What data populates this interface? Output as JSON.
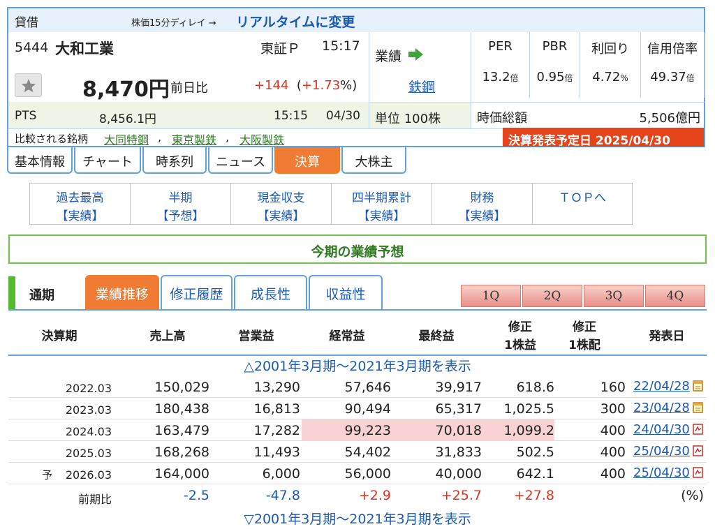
{
  "header": {
    "kashaku": "貸借",
    "delay_text": "株価15分ディレイ →",
    "realtime_link": "リアルタイムに変更",
    "code": "5444",
    "name": "大和工業",
    "market": "東証Ｐ",
    "time": "15:17",
    "price": "8,470円",
    "prev_label": "前日比",
    "change": "+144",
    "change_paren_open": "(",
    "change_pct": "+1.73",
    "change_paren_close": "%)",
    "pts_label": "PTS",
    "pts_price": "8,456.1円",
    "pts_time": "15:15",
    "pts_date": "04/30",
    "gyoseki_label": "業績",
    "industry": "鉄鋼",
    "unit": "単位 100株",
    "indicators": [
      {
        "label": "PER",
        "value": "13.2",
        "unit": "倍"
      },
      {
        "label": "PBR",
        "value": "0.95",
        "unit": "倍"
      },
      {
        "label": "利回り",
        "value": "4.72",
        "unit": "%"
      },
      {
        "label": "信用倍率",
        "value": "49.37",
        "unit": "倍"
      }
    ],
    "market_cap_label": "時価総額",
    "market_cap": "5,506億円",
    "compare_label": "比較される銘柄",
    "compare": [
      "大同特鋼",
      "東京製鉄",
      "大阪製鉄"
    ],
    "compare_sep": ",",
    "earnings_announce": "決算発表予定日  2025/04/30"
  },
  "tabs": [
    "基本情報",
    "チャート",
    "時系列",
    "ニュース",
    "決算",
    "大株主"
  ],
  "active_tab": "決算",
  "submenu": [
    {
      "top": "過去最高",
      "bottom": "【実績】"
    },
    {
      "top": "半期",
      "bottom": "【予想】"
    },
    {
      "top": "現金収支",
      "bottom": "【実績】"
    },
    {
      "top": "四半期累計",
      "bottom": "【実績】"
    },
    {
      "top": "財務",
      "bottom": "【実績】"
    },
    {
      "top": "ＴＯＰへ",
      "bottom": ""
    }
  ],
  "banner": "今期の業績予想",
  "period_label": "通期",
  "lower_tabs": [
    "業績推移",
    "修正履歴",
    "成長性",
    "収益性"
  ],
  "quarter_buttons": [
    "1Q",
    "2Q",
    "3Q",
    "4Q"
  ],
  "table": {
    "headers": {
      "period": "決算期",
      "sales": "売上高",
      "op": "営業益",
      "ordinary": "経常益",
      "net": "最終益",
      "eps_l1": "修正",
      "eps_l2": "1株益",
      "div_l1": "修正",
      "div_l2": "1株配",
      "date": "発表日"
    },
    "toggle_top": "△2001年3月期～2021年3月期を表示",
    "toggle_bottom": "▽2001年3月期～2021年3月期を表示",
    "rows": [
      {
        "prefix": "",
        "period": "2022.03",
        "sales": "150,029",
        "op": "13,290",
        "ordinary": "57,646",
        "net": "39,917",
        "eps": "618.6",
        "div": "160",
        "date": "22/04/28"
      },
      {
        "prefix": "",
        "period": "2023.03",
        "sales": "180,438",
        "op": "16,813",
        "ordinary": "90,494",
        "net": "65,317",
        "eps": "1,025.5",
        "div": "300",
        "date": "23/04/28"
      },
      {
        "prefix": "",
        "period": "2024.03",
        "sales": "163,479",
        "op": "17,282",
        "ordinary": "99,223",
        "net": "70,018",
        "eps": "1,099.2",
        "div": "400",
        "date": "24/04/30"
      },
      {
        "prefix": "",
        "period": "2025.03",
        "sales": "168,268",
        "op": "11,493",
        "ordinary": "54,402",
        "net": "31,833",
        "eps": "502.5",
        "div": "400",
        "date": "25/04/30"
      },
      {
        "prefix": "予",
        "period": "2026.03",
        "sales": "164,000",
        "op": "6,000",
        "ordinary": "56,000",
        "net": "40,000",
        "eps": "642.1",
        "div": "400",
        "date": "25/04/30"
      }
    ],
    "ratio_row": {
      "label": "前期比",
      "sales": "-2.5",
      "op": "-47.8",
      "ordinary": "+2.9",
      "net": "+25.7",
      "eps": "+27.8",
      "unit": "(%)"
    }
  },
  "colors": {
    "accent_blue": "#5fa2dd",
    "orange": "#f07c34",
    "green": "#6fc24c",
    "highlight": "#f8d2d2",
    "announce_bg": "#e5431a"
  }
}
